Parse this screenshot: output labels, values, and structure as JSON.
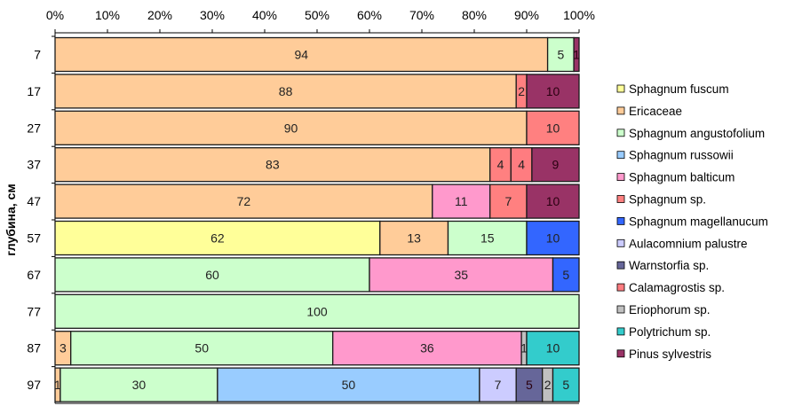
{
  "chart_data": {
    "type": "bar",
    "orientation": "horizontal",
    "stacked": "percent",
    "title": "",
    "xlabel": "",
    "ylabel": "глубина, см",
    "xlim": [
      0,
      100
    ],
    "x_ticks": [
      "0%",
      "10%",
      "20%",
      "30%",
      "40%",
      "50%",
      "60%",
      "70%",
      "80%",
      "90%",
      "100%"
    ],
    "categories": [
      "7",
      "17",
      "27",
      "37",
      "47",
      "57",
      "67",
      "77",
      "87",
      "97"
    ],
    "legend_position": "right",
    "series": [
      {
        "name": "Sphagnum fuscum",
        "color": "#FFFF99",
        "values": [
          0,
          0,
          0,
          0,
          0,
          62,
          0,
          0,
          0,
          0
        ]
      },
      {
        "name": "Ericaceae",
        "color": "#FFCC99",
        "values": [
          94,
          88,
          90,
          83,
          72,
          13,
          0,
          0,
          3,
          1
        ]
      },
      {
        "name": "Sphagnum angustofolium",
        "color": "#CCFFCC",
        "values": [
          5,
          0,
          0,
          0,
          0,
          15,
          60,
          100,
          50,
          30
        ]
      },
      {
        "name": "Sphagnum russowii",
        "color": "#99CCFF",
        "values": [
          0,
          0,
          0,
          0,
          0,
          0,
          0,
          0,
          0,
          50
        ]
      },
      {
        "name": "Sphagnum balticum",
        "color": "#FF99CC",
        "values": [
          0,
          0,
          0,
          0,
          11,
          0,
          35,
          0,
          36,
          0
        ]
      },
      {
        "name": "Sphagnum sp.",
        "color": "#FF8080",
        "values": [
          0,
          2,
          10,
          4,
          7,
          0,
          0,
          0,
          0,
          0
        ]
      },
      {
        "name": "Sphagnum magellanucum",
        "color": "#3366FF",
        "values": [
          0,
          0,
          0,
          0,
          0,
          10,
          5,
          0,
          0,
          0
        ]
      },
      {
        "name": "Aulacomnium palustre",
        "color": "#CCCCFF",
        "values": [
          0,
          0,
          0,
          0,
          0,
          0,
          0,
          0,
          0,
          7
        ]
      },
      {
        "name": "Warnstorfia sp.",
        "color": "#666699",
        "values": [
          0,
          0,
          0,
          0,
          0,
          0,
          0,
          0,
          0,
          5
        ]
      },
      {
        "name": "Calamagrostis sp.",
        "color": "#FF7C80",
        "values": [
          0,
          0,
          0,
          4,
          0,
          0,
          0,
          0,
          0,
          0
        ]
      },
      {
        "name": "Eriophorum sp.",
        "color": "#C0C0C0",
        "values": [
          0,
          0,
          0,
          0,
          0,
          0,
          0,
          0,
          1,
          2
        ]
      },
      {
        "name": "Polytrichum sp.",
        "color": "#33CCCC",
        "values": [
          0,
          0,
          0,
          0,
          0,
          0,
          0,
          0,
          10,
          5
        ]
      },
      {
        "name": "Pinus sylvestris",
        "color": "#993366",
        "values": [
          1,
          10,
          0,
          9,
          10,
          0,
          0,
          0,
          0,
          0
        ]
      }
    ]
  }
}
